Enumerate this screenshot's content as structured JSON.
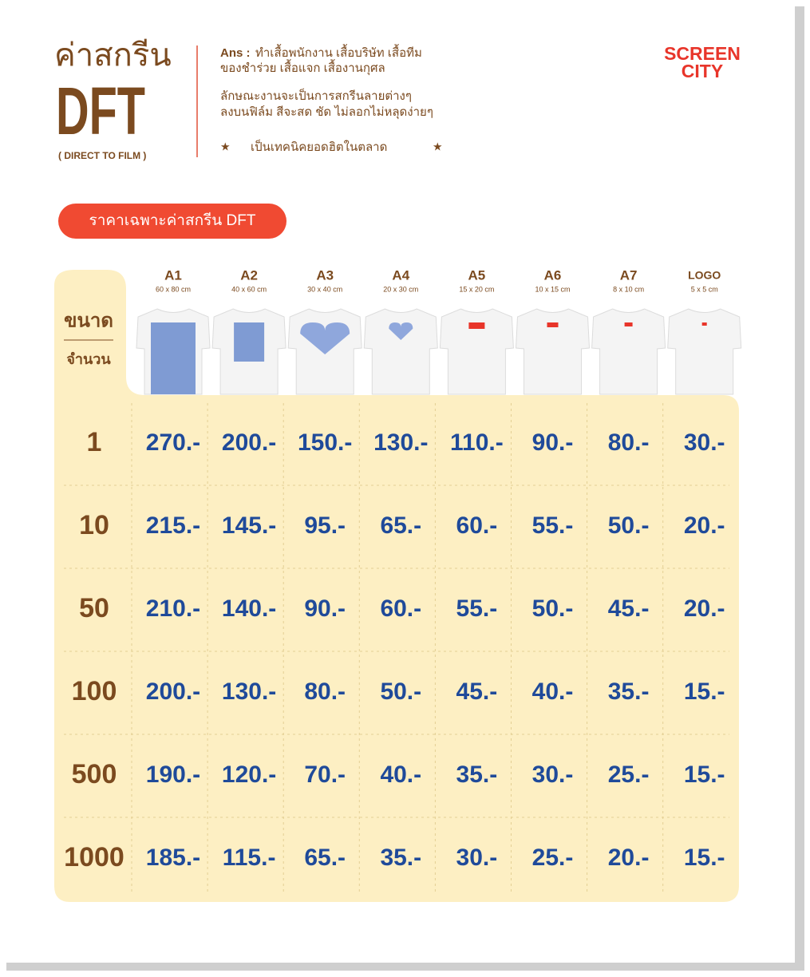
{
  "header": {
    "title": "ค่าสกรีน",
    "subtitle": "DFT",
    "note": "( DIRECT TO FILM )"
  },
  "description": {
    "label": "Ans :",
    "lines": [
      "ทำเสื้อพนักงาน เสื้อบริษัท เสื้อทีม",
      "ของชำร่วย เสื้อแจก เสื้องานกุศล"
    ],
    "paragraph": [
      "ลักษณะงานจะเป็นการสกรีนลายต่างๆ",
      "ลงบนฟิล์ม สีจะสด ชัด ไม่ลอกไม่หลุดง่ายๆ"
    ],
    "highlight": "เป็นเทคนิคยอดฮิตในตลาด"
  },
  "logo": [
    "SCREEN",
    "CITY"
  ],
  "badge": "ราคาเฉพาะค่าสกรีน DFT",
  "table": {
    "size_header": "ขนาด",
    "quantity_header": "จำนวน",
    "columns": [
      {
        "size": "A1",
        "dims": "60 x 80 cm"
      },
      {
        "size": "A2",
        "dims": "40 x 60 cm"
      },
      {
        "size": "A3",
        "dims": "30 x 40 cm"
      },
      {
        "size": "A4",
        "dims": "20 x 30 cm"
      },
      {
        "size": "A5",
        "dims": "15 x 20 cm"
      },
      {
        "size": "A6",
        "dims": "10 x 15 cm"
      },
      {
        "size": "A7",
        "dims": "8 x 10 cm"
      },
      {
        "size": "LOGO",
        "dims": "5 x 5 cm"
      }
    ],
    "rows": [
      {
        "quantity": "1",
        "prices": [
          "270.-",
          "200.-",
          "150.-",
          "130.-",
          "110.-",
          "90.-",
          "80.-",
          "30.-"
        ]
      },
      {
        "quantity": "10",
        "prices": [
          "215.-",
          "145.-",
          "95.-",
          "65.-",
          "60.-",
          "55.-",
          "50.-",
          "20.-"
        ]
      },
      {
        "quantity": "50",
        "prices": [
          "210.-",
          "140.-",
          "90.-",
          "60.-",
          "55.-",
          "50.-",
          "45.-",
          "20.-"
        ]
      },
      {
        "quantity": "100",
        "prices": [
          "200.-",
          "130.-",
          "80.-",
          "50.-",
          "45.-",
          "40.-",
          "35.-",
          "15.-"
        ]
      },
      {
        "quantity": "500",
        "prices": [
          "190.-",
          "120.-",
          "70.-",
          "40.-",
          "35.-",
          "30.-",
          "25.-",
          "15.-"
        ]
      },
      {
        "quantity": "1000",
        "prices": [
          "185.-",
          "115.-",
          "65.-",
          "35.-",
          "30.-",
          "25.-",
          "20.-",
          "15.-"
        ]
      }
    ]
  }
}
